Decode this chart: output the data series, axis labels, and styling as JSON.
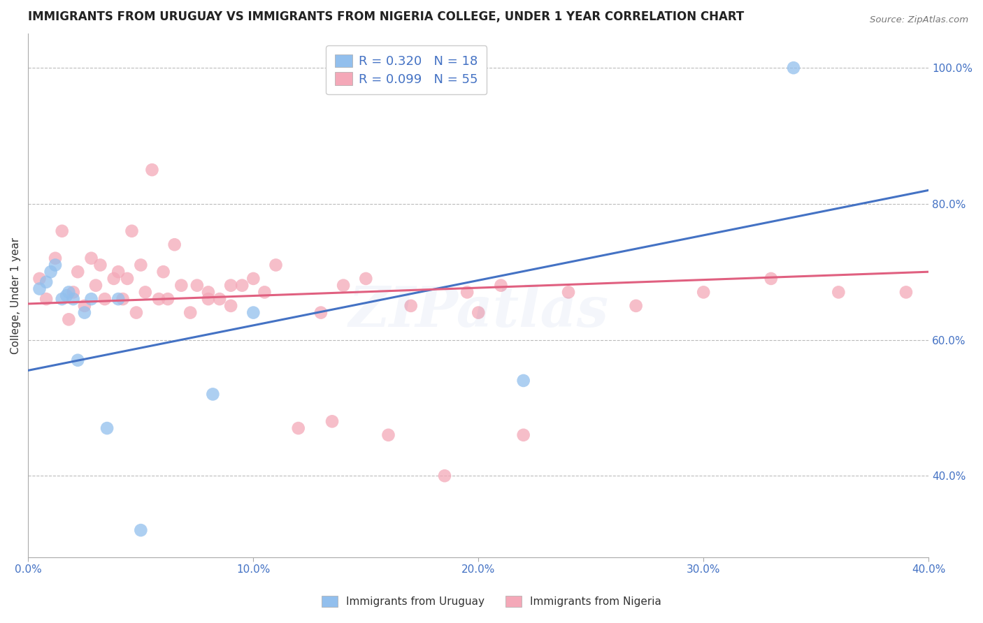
{
  "title": "IMMIGRANTS FROM URUGUAY VS IMMIGRANTS FROM NIGERIA COLLEGE, UNDER 1 YEAR CORRELATION CHART",
  "source": "Source: ZipAtlas.com",
  "ylabel": "College, Under 1 year",
  "xlim": [
    0.0,
    0.4
  ],
  "ylim": [
    0.28,
    1.05
  ],
  "xticks": [
    0.0,
    0.1,
    0.2,
    0.3,
    0.4
  ],
  "yticks": [
    0.4,
    0.6,
    0.8,
    1.0
  ],
  "ytick_labels": [
    "40.0%",
    "60.0%",
    "80.0%",
    "100.0%"
  ],
  "xtick_labels": [
    "0.0%",
    "10.0%",
    "20.0%",
    "30.0%",
    "40.0%"
  ],
  "uruguay_R": 0.32,
  "uruguay_N": 18,
  "nigeria_R": 0.099,
  "nigeria_N": 55,
  "uruguay_color": "#92BFED",
  "nigeria_color": "#F4A8B8",
  "uruguay_line_color": "#4472C4",
  "nigeria_line_color": "#E06080",
  "watermark": "ZIPatlas",
  "uruguay_x": [
    0.005,
    0.008,
    0.01,
    0.012,
    0.015,
    0.017,
    0.018,
    0.02,
    0.022,
    0.025,
    0.028,
    0.035,
    0.04,
    0.05,
    0.082,
    0.1,
    0.22,
    0.34
  ],
  "uruguay_y": [
    0.675,
    0.685,
    0.7,
    0.71,
    0.66,
    0.665,
    0.67,
    0.66,
    0.57,
    0.64,
    0.66,
    0.47,
    0.66,
    0.32,
    0.52,
    0.64,
    0.54,
    1.0
  ],
  "nigeria_x": [
    0.005,
    0.008,
    0.012,
    0.015,
    0.018,
    0.02,
    0.022,
    0.025,
    0.028,
    0.03,
    0.032,
    0.034,
    0.038,
    0.04,
    0.042,
    0.044,
    0.046,
    0.048,
    0.05,
    0.052,
    0.055,
    0.058,
    0.06,
    0.062,
    0.065,
    0.068,
    0.072,
    0.075,
    0.08,
    0.085,
    0.09,
    0.095,
    0.1,
    0.105,
    0.11,
    0.12,
    0.13,
    0.135,
    0.14,
    0.16,
    0.17,
    0.185,
    0.2,
    0.21,
    0.22,
    0.24,
    0.27,
    0.3,
    0.33,
    0.36,
    0.39,
    0.08,
    0.09,
    0.15,
    0.195
  ],
  "nigeria_y": [
    0.69,
    0.66,
    0.72,
    0.76,
    0.63,
    0.67,
    0.7,
    0.65,
    0.72,
    0.68,
    0.71,
    0.66,
    0.69,
    0.7,
    0.66,
    0.69,
    0.76,
    0.64,
    0.71,
    0.67,
    0.85,
    0.66,
    0.7,
    0.66,
    0.74,
    0.68,
    0.64,
    0.68,
    0.67,
    0.66,
    0.65,
    0.68,
    0.69,
    0.67,
    0.71,
    0.47,
    0.64,
    0.48,
    0.68,
    0.46,
    0.65,
    0.4,
    0.64,
    0.68,
    0.46,
    0.67,
    0.65,
    0.67,
    0.69,
    0.67,
    0.67,
    0.66,
    0.68,
    0.69,
    0.67
  ],
  "uruguay_trend_x": [
    0.0,
    0.4
  ],
  "uruguay_trend_y": [
    0.555,
    0.82
  ],
  "nigeria_trend_x": [
    0.0,
    0.4
  ],
  "nigeria_trend_y": [
    0.653,
    0.7
  ],
  "background_color": "#FFFFFF",
  "grid_color": "#BBBBBB",
  "title_fontsize": 12,
  "label_fontsize": 11,
  "tick_fontsize": 11,
  "legend_fontsize": 13
}
